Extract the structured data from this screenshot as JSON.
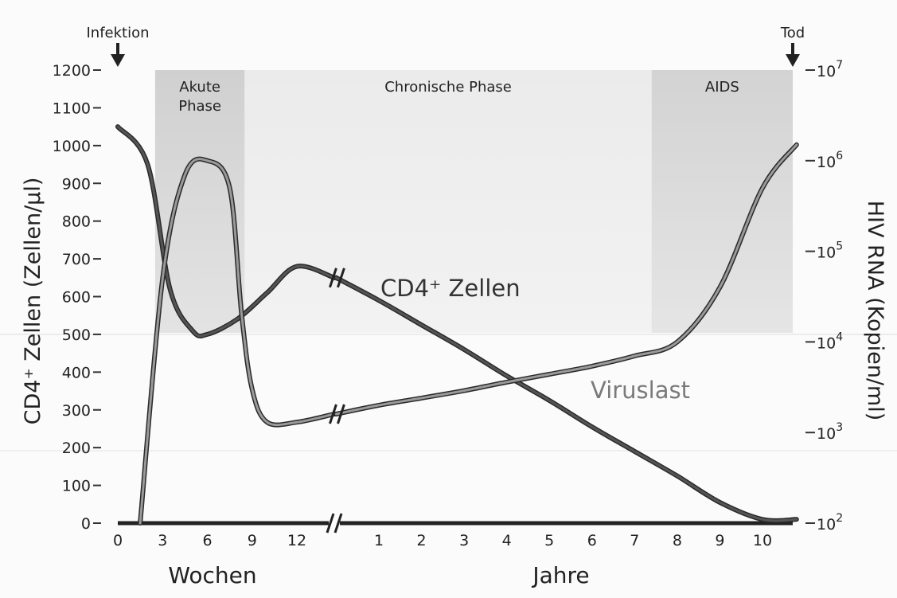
{
  "chart_data": {
    "type": "line",
    "ylabel": "CD4⁺ Zellen (Zellen/µl)",
    "y2label": "HIV RNA (Kopien/ml)",
    "ylim": [
      0,
      1200
    ],
    "y2lim": [
      100,
      10000000
    ],
    "y2scale": "log",
    "y_ticks": [
      "0",
      "100",
      "200",
      "300",
      "400",
      "500",
      "600",
      "700",
      "800",
      "900",
      "1000",
      "1100",
      "1200"
    ],
    "y2_ticks": [
      {
        "base": "10",
        "exp": "2"
      },
      {
        "base": "10",
        "exp": "3"
      },
      {
        "base": "10",
        "exp": "4"
      },
      {
        "base": "10",
        "exp": "5"
      },
      {
        "base": "10",
        "exp": "6"
      },
      {
        "base": "10",
        "exp": "7"
      }
    ],
    "x_groups": [
      {
        "label": "Wochen",
        "ticks": [
          "0",
          "3",
          "6",
          "9",
          "12"
        ]
      },
      {
        "label": "Jahre",
        "ticks": [
          "1",
          "2",
          "3",
          "4",
          "5",
          "6",
          "7",
          "8",
          "9",
          "10"
        ]
      }
    ],
    "phases": [
      {
        "label_lines": [
          "Akute",
          "Phase"
        ],
        "start_week": 2.5,
        "end_week": 8.5,
        "shade": "#d0d0d0"
      },
      {
        "label_lines": [
          "Chronische Phase"
        ],
        "start_year": 0,
        "end_year": 7.4,
        "shade": "#ebebeb"
      },
      {
        "label_lines": [
          "AIDS"
        ],
        "start_year": 7.4,
        "end_year": 10.8,
        "shade": "#d3d3d3"
      }
    ],
    "events": [
      {
        "label": "Infektion",
        "at": "week 0"
      },
      {
        "label": "Tod",
        "at": "year 10.8"
      }
    ],
    "series": [
      {
        "name": "CD4⁺ Zellen",
        "axis": "left",
        "color": "#555555",
        "weeks": [
          [
            0,
            1050
          ],
          [
            2,
            950
          ],
          [
            3.5,
            620
          ],
          [
            5,
            510
          ],
          [
            6,
            500
          ],
          [
            8,
            540
          ],
          [
            10,
            610
          ],
          [
            12,
            680
          ],
          [
            14.5,
            650
          ]
        ],
        "years": [
          [
            0,
            650
          ],
          [
            1,
            590
          ],
          [
            2,
            525
          ],
          [
            3,
            460
          ],
          [
            4,
            390
          ],
          [
            5,
            325
          ],
          [
            6,
            255
          ],
          [
            7,
            190
          ],
          [
            8,
            125
          ],
          [
            9,
            55
          ],
          [
            10,
            10
          ],
          [
            10.8,
            10
          ]
        ]
      },
      {
        "name": "Viruslast",
        "axis": "right",
        "color": "#9a9a9a",
        "weeks": [
          [
            1.5,
            100
          ],
          [
            3,
            50000
          ],
          [
            4.5,
            700000
          ],
          [
            6,
            1000000
          ],
          [
            7.5,
            500000
          ],
          [
            8.3,
            20000
          ],
          [
            9,
            3000
          ],
          [
            10,
            1300
          ],
          [
            12,
            1300
          ],
          [
            14.5,
            1600
          ]
        ],
        "years": [
          [
            0,
            1600
          ],
          [
            1,
            2000
          ],
          [
            2,
            2400
          ],
          [
            3,
            2900
          ],
          [
            4,
            3600
          ],
          [
            5,
            4400
          ],
          [
            6,
            5400
          ],
          [
            7,
            7000
          ],
          [
            8,
            10000
          ],
          [
            9,
            40000
          ],
          [
            10,
            500000
          ],
          [
            10.8,
            1500000
          ]
        ]
      }
    ]
  }
}
